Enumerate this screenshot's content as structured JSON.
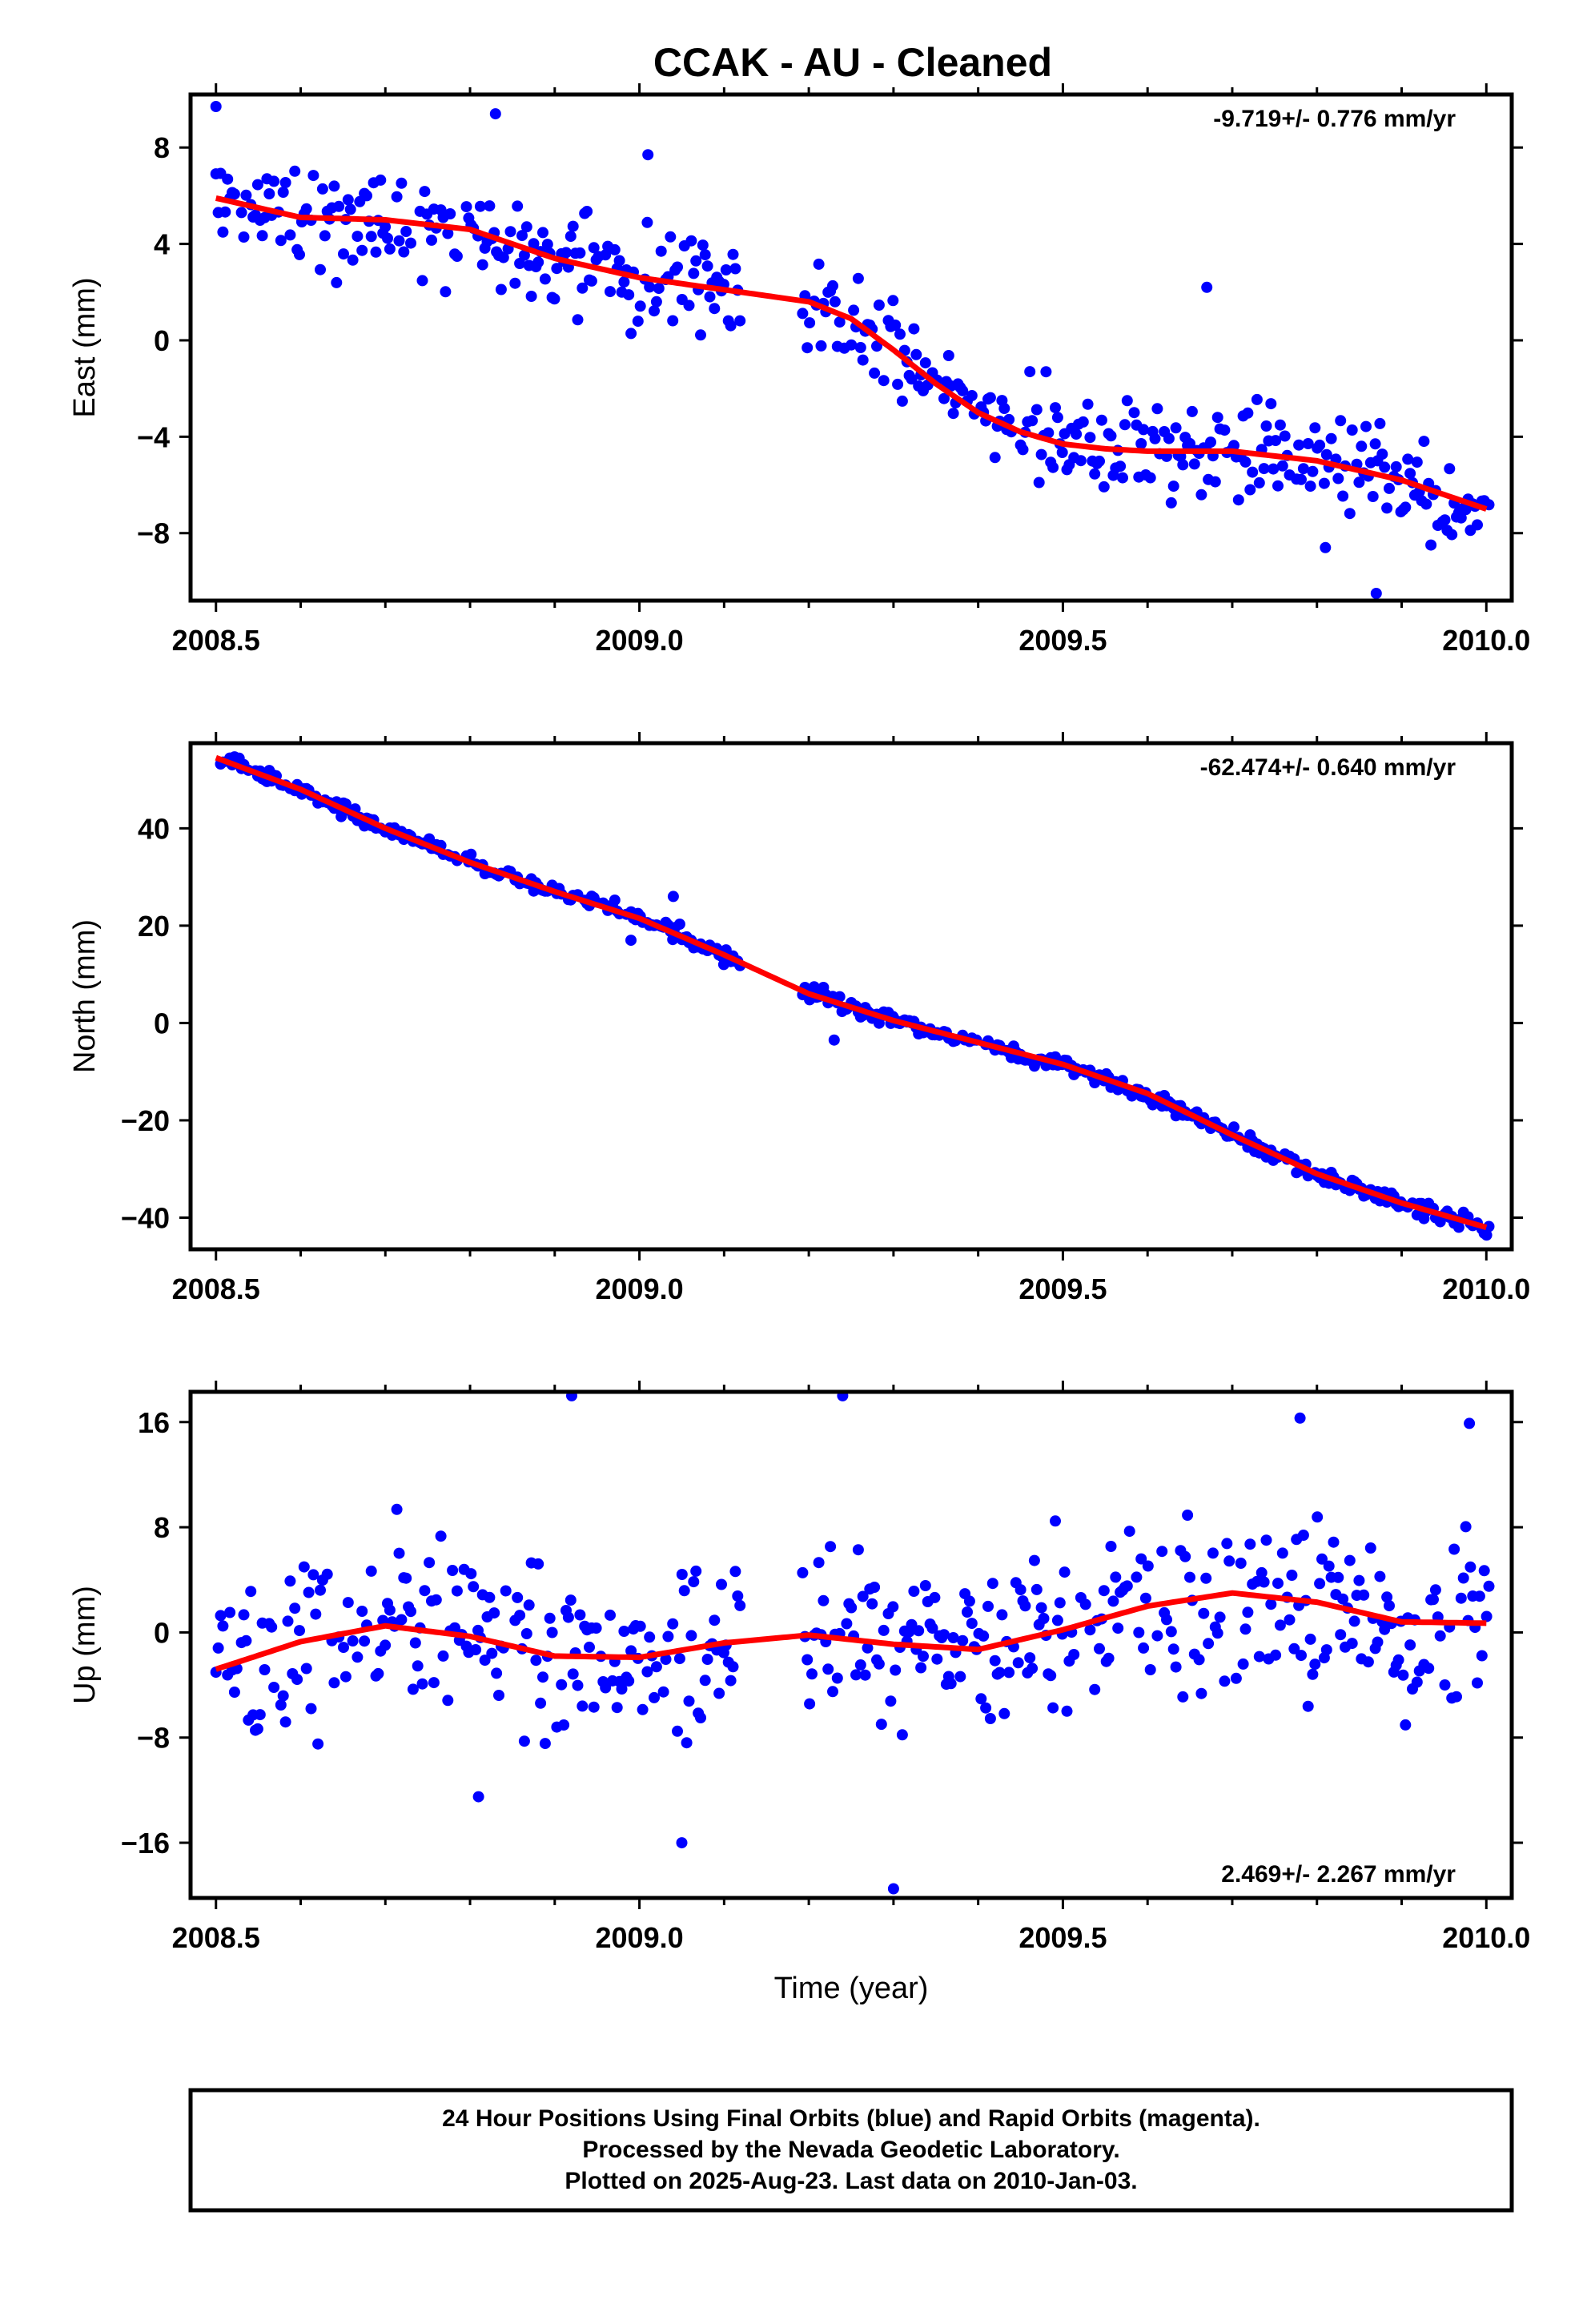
{
  "title": "CCAK  - AU - Cleaned",
  "footer": {
    "lines": [
      "24 Hour Positions Using Final Orbits (blue) and Rapid Orbits (magenta).",
      "Processed by the Nevada Geodetic Laboratory.",
      "Plotted on 2025-Aug-23. Last data on 2010-Jan-03."
    ]
  },
  "colors": {
    "points": "#0000ff",
    "fit": "#ff0000",
    "frame": "#000000"
  },
  "chart_data": [
    {
      "type": "scatter",
      "name": "east",
      "ylabel": "East (mm)",
      "xlabel": "",
      "rate": "-9.719+/- 0.776 mm/yr",
      "rate_position": "top-right",
      "xlim": [
        2008.47,
        2010.03
      ],
      "ylim": [
        -10.8,
        10.2
      ],
      "xticks": [
        2008.5,
        2009.0,
        2009.5,
        2010.0
      ],
      "xtick_labels": [
        "2008.5",
        "2009.0",
        "2009.5",
        "2010.0"
      ],
      "yticks": [
        -8,
        -4,
        0,
        4,
        8
      ],
      "ytick_labels": [
        "−8",
        "−4",
        "0",
        "4",
        "8"
      ],
      "fit_curve": {
        "x": [
          2008.5,
          2008.6,
          2008.7,
          2008.8,
          2008.9,
          2009.0,
          2009.1,
          2009.2,
          2009.25,
          2009.3,
          2009.35,
          2009.4,
          2009.45,
          2009.5,
          2009.55,
          2009.6,
          2009.7,
          2009.8,
          2009.9,
          2010.0
        ],
        "y": [
          5.9,
          5.1,
          5.0,
          4.6,
          3.4,
          2.6,
          2.1,
          1.6,
          0.9,
          -0.4,
          -1.8,
          -3.0,
          -3.8,
          -4.3,
          -4.5,
          -4.6,
          -4.6,
          -5.0,
          -5.8,
          -7.0
        ]
      },
      "trend": {
        "x": [
          2008.5,
          2010.0
        ],
        "y": [
          5.9,
          -7.0
        ],
        "sd": 1.45
      },
      "gaps": [
        [
          2009.12,
          2009.19
        ]
      ],
      "outliers": {
        "x": [
          2008.5,
          2008.83,
          2009.01,
          2009.67,
          2009.87,
          2009.81
        ],
        "y": [
          9.7,
          9.4,
          7.7,
          2.2,
          -10.5,
          -8.6
        ]
      },
      "seed": 11
    },
    {
      "type": "scatter",
      "name": "north",
      "ylabel": "North (mm)",
      "xlabel": "",
      "rate": "-62.474+/- 0.640 mm/yr",
      "rate_position": "top-right",
      "xlim": [
        2008.47,
        2010.03
      ],
      "ylim": [
        -46.5,
        57.5
      ],
      "xticks": [
        2008.5,
        2009.0,
        2009.5,
        2010.0
      ],
      "xtick_labels": [
        "2008.5",
        "2009.0",
        "2009.5",
        "2010.0"
      ],
      "yticks": [
        -40,
        -20,
        0,
        20,
        40
      ],
      "ytick_labels": [
        "−40",
        "−20",
        "0",
        "20",
        "40"
      ],
      "fit_curve": {
        "x": [
          2008.5,
          2008.6,
          2008.7,
          2008.8,
          2008.9,
          2009.0,
          2009.1,
          2009.2,
          2009.3,
          2009.4,
          2009.5,
          2009.6,
          2009.7,
          2009.8,
          2009.9,
          2010.0
        ],
        "y": [
          54.5,
          48.0,
          40.0,
          33.0,
          27.0,
          21.5,
          14.0,
          6.0,
          0.5,
          -4.0,
          -8.5,
          -14.5,
          -23.0,
          -31.0,
          -37.0,
          -42.0
        ]
      },
      "trend": {
        "x": [
          2008.5,
          2010.0
        ],
        "y": [
          54.5,
          -42.0
        ],
        "sd": 1.2
      },
      "gaps": [
        [
          2009.12,
          2009.19
        ]
      ],
      "outliers": {
        "x": [
          2009.04,
          2008.99,
          2009.23
        ],
        "y": [
          26.0,
          17.0,
          -3.5
        ]
      },
      "seed": 23
    },
    {
      "type": "scatter",
      "name": "up",
      "ylabel": "Up (mm)",
      "xlabel": "Time (year)",
      "rate": "2.469+/- 2.267 mm/yr",
      "rate_position": "bottom-right",
      "xlim": [
        2008.47,
        2010.03
      ],
      "ylim": [
        -20.2,
        18.3
      ],
      "xticks": [
        2008.5,
        2009.0,
        2009.5,
        2010.0
      ],
      "xtick_labels": [
        "2008.5",
        "2009.0",
        "2009.5",
        "2010.0"
      ],
      "yticks": [
        -16,
        -8,
        0,
        8,
        16
      ],
      "ytick_labels": [
        "−16",
        "−8",
        "0",
        "8",
        "16"
      ],
      "fit_curve": {
        "x": [
          2008.5,
          2008.6,
          2008.7,
          2008.8,
          2008.9,
          2009.0,
          2009.1,
          2009.2,
          2009.3,
          2009.4,
          2009.5,
          2009.6,
          2009.7,
          2009.8,
          2009.9,
          2010.0
        ],
        "y": [
          -2.8,
          -0.7,
          0.5,
          -0.3,
          -1.8,
          -1.9,
          -0.8,
          -0.2,
          -0.9,
          -1.3,
          0.2,
          2.0,
          3.0,
          2.3,
          0.8,
          0.7
        ]
      },
      "trend": {
        "x": [
          2008.5,
          2010.0
        ],
        "y": [
          -2.8,
          0.7
        ],
        "sd": 4.8
      },
      "gaps": [
        [
          2009.12,
          2009.19
        ]
      ],
      "outliers": {
        "x": [
          2008.92,
          2009.24,
          2009.3,
          2009.05,
          2008.81,
          2009.98,
          2009.78
        ],
        "y": [
          18.0,
          18.0,
          -19.5,
          -16.0,
          -12.5,
          15.9,
          16.3
        ]
      },
      "seed": 37
    }
  ]
}
